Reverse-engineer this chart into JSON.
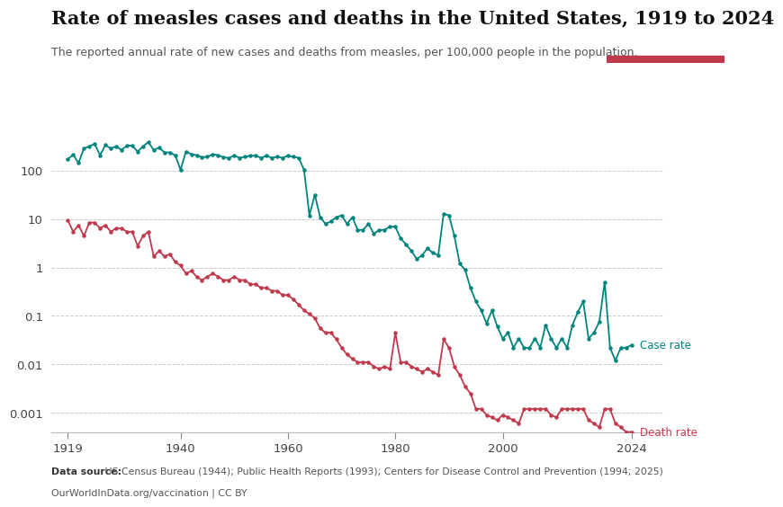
{
  "title": "Rate of measles cases and deaths in the United States, 1919 to 2024",
  "subtitle": "The reported annual rate of new cases and deaths from measles, per 100,000 people in the population.",
  "datasource_bold": "Data source:",
  "datasource_rest": " US Census Bureau (1944); Public Health Reports (1993); Centers for Disease Control and Prevention (1994; 2025)",
  "datasource_line2": "OurWorldInData.org/vaccination | CC BY",
  "case_color": "#00847e",
  "death_color": "#c0384b",
  "logo_bg": "#1a3a5c",
  "logo_bar_color": "#c0384b",
  "case_data": [
    [
      1919,
      175
    ],
    [
      1920,
      215
    ],
    [
      1921,
      145
    ],
    [
      1922,
      290
    ],
    [
      1923,
      320
    ],
    [
      1924,
      360
    ],
    [
      1925,
      210
    ],
    [
      1926,
      340
    ],
    [
      1927,
      290
    ],
    [
      1928,
      320
    ],
    [
      1929,
      270
    ],
    [
      1930,
      330
    ],
    [
      1931,
      330
    ],
    [
      1932,
      250
    ],
    [
      1933,
      320
    ],
    [
      1934,
      390
    ],
    [
      1935,
      270
    ],
    [
      1936,
      300
    ],
    [
      1937,
      240
    ],
    [
      1938,
      240
    ],
    [
      1939,
      210
    ],
    [
      1940,
      105
    ],
    [
      1941,
      250
    ],
    [
      1942,
      220
    ],
    [
      1943,
      210
    ],
    [
      1944,
      190
    ],
    [
      1945,
      195
    ],
    [
      1946,
      220
    ],
    [
      1947,
      210
    ],
    [
      1948,
      190
    ],
    [
      1949,
      185
    ],
    [
      1950,
      205
    ],
    [
      1951,
      185
    ],
    [
      1952,
      195
    ],
    [
      1953,
      205
    ],
    [
      1954,
      205
    ],
    [
      1955,
      185
    ],
    [
      1956,
      205
    ],
    [
      1957,
      185
    ],
    [
      1958,
      195
    ],
    [
      1959,
      185
    ],
    [
      1960,
      205
    ],
    [
      1961,
      195
    ],
    [
      1962,
      185
    ],
    [
      1963,
      105
    ],
    [
      1964,
      12
    ],
    [
      1965,
      32
    ],
    [
      1966,
      11
    ],
    [
      1967,
      8
    ],
    [
      1968,
      9
    ],
    [
      1969,
      11
    ],
    [
      1970,
      12
    ],
    [
      1971,
      8
    ],
    [
      1972,
      11
    ],
    [
      1973,
      6
    ],
    [
      1974,
      6
    ],
    [
      1975,
      8
    ],
    [
      1976,
      5
    ],
    [
      1977,
      6
    ],
    [
      1978,
      6
    ],
    [
      1979,
      7
    ],
    [
      1980,
      7
    ],
    [
      1981,
      4
    ],
    [
      1982,
      3.0
    ],
    [
      1983,
      2.2
    ],
    [
      1984,
      1.5
    ],
    [
      1985,
      1.8
    ],
    [
      1986,
      2.5
    ],
    [
      1987,
      2.0
    ],
    [
      1988,
      1.8
    ],
    [
      1989,
      13
    ],
    [
      1990,
      12
    ],
    [
      1991,
      4.5
    ],
    [
      1992,
      1.2
    ],
    [
      1993,
      0.9
    ],
    [
      1994,
      0.38
    ],
    [
      1995,
      0.2
    ],
    [
      1996,
      0.13
    ],
    [
      1997,
      0.07
    ],
    [
      1998,
      0.13
    ],
    [
      1999,
      0.06
    ],
    [
      2000,
      0.034
    ],
    [
      2001,
      0.045
    ],
    [
      2002,
      0.022
    ],
    [
      2003,
      0.034
    ],
    [
      2004,
      0.022
    ],
    [
      2005,
      0.022
    ],
    [
      2006,
      0.034
    ],
    [
      2007,
      0.022
    ],
    [
      2008,
      0.065
    ],
    [
      2009,
      0.034
    ],
    [
      2010,
      0.022
    ],
    [
      2011,
      0.034
    ],
    [
      2012,
      0.022
    ],
    [
      2013,
      0.065
    ],
    [
      2014,
      0.12
    ],
    [
      2015,
      0.2
    ],
    [
      2016,
      0.034
    ],
    [
      2017,
      0.045
    ],
    [
      2018,
      0.075
    ],
    [
      2019,
      0.5
    ],
    [
      2020,
      0.022
    ],
    [
      2021,
      0.012
    ],
    [
      2022,
      0.022
    ],
    [
      2023,
      0.022
    ],
    [
      2024,
      0.025
    ]
  ],
  "death_data": [
    [
      1919,
      9.5
    ],
    [
      1920,
      5.5
    ],
    [
      1921,
      7.5
    ],
    [
      1922,
      4.5
    ],
    [
      1923,
      8.5
    ],
    [
      1924,
      8.5
    ],
    [
      1925,
      6.5
    ],
    [
      1926,
      7.5
    ],
    [
      1927,
      5.5
    ],
    [
      1928,
      6.5
    ],
    [
      1929,
      6.5
    ],
    [
      1930,
      5.5
    ],
    [
      1931,
      5.5
    ],
    [
      1932,
      2.8
    ],
    [
      1933,
      4.5
    ],
    [
      1934,
      5.5
    ],
    [
      1935,
      1.7
    ],
    [
      1936,
      2.2
    ],
    [
      1937,
      1.7
    ],
    [
      1938,
      1.9
    ],
    [
      1939,
      1.3
    ],
    [
      1940,
      1.1
    ],
    [
      1941,
      0.75
    ],
    [
      1942,
      0.85
    ],
    [
      1943,
      0.65
    ],
    [
      1944,
      0.55
    ],
    [
      1945,
      0.65
    ],
    [
      1946,
      0.75
    ],
    [
      1947,
      0.65
    ],
    [
      1948,
      0.55
    ],
    [
      1949,
      0.55
    ],
    [
      1950,
      0.65
    ],
    [
      1951,
      0.55
    ],
    [
      1952,
      0.55
    ],
    [
      1953,
      0.45
    ],
    [
      1954,
      0.45
    ],
    [
      1955,
      0.38
    ],
    [
      1956,
      0.38
    ],
    [
      1957,
      0.33
    ],
    [
      1958,
      0.33
    ],
    [
      1959,
      0.27
    ],
    [
      1960,
      0.27
    ],
    [
      1961,
      0.22
    ],
    [
      1962,
      0.17
    ],
    [
      1963,
      0.13
    ],
    [
      1964,
      0.11
    ],
    [
      1965,
      0.09
    ],
    [
      1966,
      0.055
    ],
    [
      1967,
      0.045
    ],
    [
      1968,
      0.045
    ],
    [
      1969,
      0.033
    ],
    [
      1970,
      0.022
    ],
    [
      1971,
      0.016
    ],
    [
      1972,
      0.013
    ],
    [
      1973,
      0.011
    ],
    [
      1974,
      0.011
    ],
    [
      1975,
      0.011
    ],
    [
      1976,
      0.009
    ],
    [
      1977,
      0.008
    ],
    [
      1978,
      0.009
    ],
    [
      1979,
      0.008
    ],
    [
      1980,
      0.045
    ],
    [
      1981,
      0.011
    ],
    [
      1982,
      0.011
    ],
    [
      1983,
      0.009
    ],
    [
      1984,
      0.008
    ],
    [
      1985,
      0.007
    ],
    [
      1986,
      0.008
    ],
    [
      1987,
      0.007
    ],
    [
      1988,
      0.006
    ],
    [
      1989,
      0.033
    ],
    [
      1990,
      0.022
    ],
    [
      1991,
      0.009
    ],
    [
      1992,
      0.006
    ],
    [
      1993,
      0.0035
    ],
    [
      1994,
      0.0025
    ],
    [
      1995,
      0.0012
    ],
    [
      1996,
      0.0012
    ],
    [
      1997,
      0.0009
    ],
    [
      1998,
      0.0008
    ],
    [
      1999,
      0.0007
    ],
    [
      2000,
      0.0009
    ],
    [
      2001,
      0.0008
    ],
    [
      2002,
      0.0007
    ],
    [
      2003,
      0.0006
    ],
    [
      2004,
      0.0012
    ],
    [
      2005,
      0.0012
    ],
    [
      2006,
      0.0012
    ],
    [
      2007,
      0.0012
    ],
    [
      2008,
      0.0012
    ],
    [
      2009,
      0.0009
    ],
    [
      2010,
      0.0008
    ],
    [
      2011,
      0.0012
    ],
    [
      2012,
      0.0012
    ],
    [
      2013,
      0.0012
    ],
    [
      2014,
      0.0012
    ],
    [
      2015,
      0.0012
    ],
    [
      2016,
      0.0007
    ],
    [
      2017,
      0.0006
    ],
    [
      2018,
      0.0005
    ],
    [
      2019,
      0.0012
    ],
    [
      2020,
      0.0012
    ],
    [
      2021,
      0.0006
    ],
    [
      2022,
      0.0005
    ],
    [
      2023,
      0.0004
    ],
    [
      2024,
      0.0004
    ]
  ],
  "yticks": [
    0.001,
    0.01,
    0.1,
    1,
    10,
    100
  ],
  "xticks": [
    1919,
    1940,
    1960,
    1980,
    2000,
    2024
  ],
  "xlim": [
    1916,
    2030
  ],
  "ylim_bottom": 0.0004,
  "ylim_top": 700
}
